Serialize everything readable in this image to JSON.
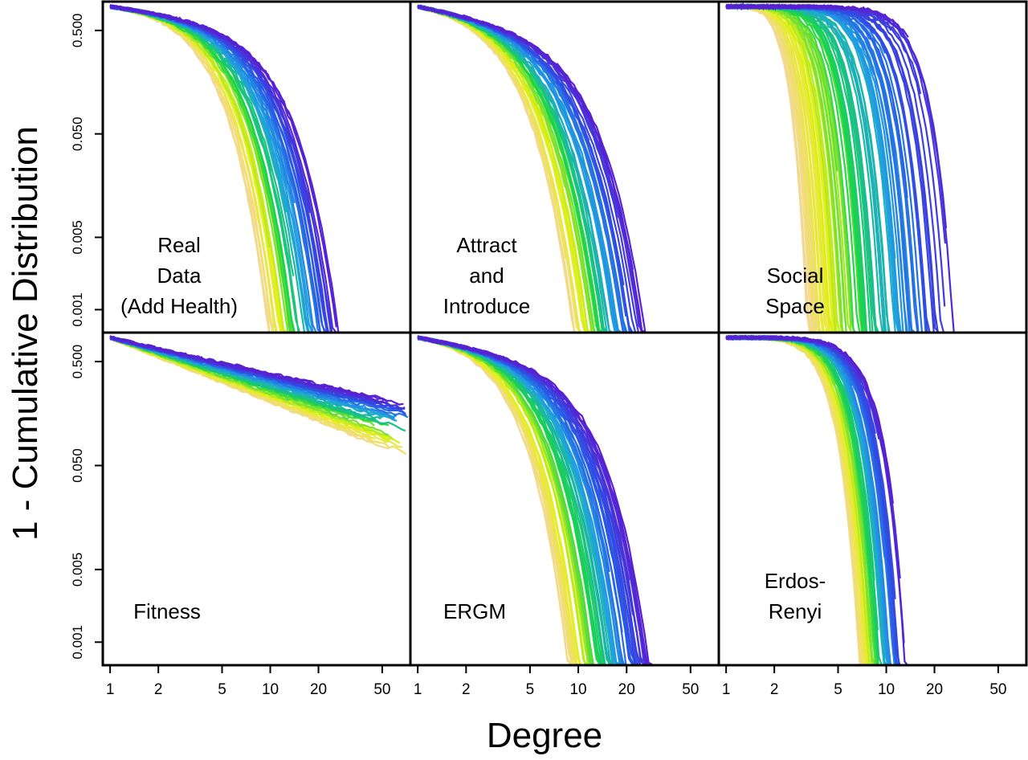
{
  "chart_data": {
    "type": "line",
    "ylabel": "1 - Cumulative Distribution",
    "xlabel": "Degree",
    "x_scale": "log",
    "y_scale": "log",
    "x_ticks": [
      1,
      2,
      5,
      10,
      20,
      50
    ],
    "x_tick_labels": [
      "1",
      "2",
      "5",
      "10",
      "20",
      "50"
    ],
    "y_ticks": [
      0.001,
      0.005,
      0.05,
      0.5
    ],
    "y_tick_labels": [
      "0.001",
      "0.005",
      "0.050",
      "0.500"
    ],
    "xlim": [
      0.9,
      75
    ],
    "ylim": [
      0.0006,
      0.95
    ],
    "color_scale": [
      "#5a1fd1",
      "#2a55e6",
      "#1fa3e0",
      "#19d44a",
      "#e3f014",
      "#f5d79a"
    ],
    "panels": [
      {
        "id": "real-data",
        "label_lines": [
          "Real",
          "Data",
          "(Add Health)"
        ],
        "model": "powercut",
        "n_series": 58,
        "kmin": 2.8,
        "kmax": 8.5,
        "beta": 1.7,
        "alpha": 0.22,
        "xmax_min": 5,
        "xmax_max": 38
      },
      {
        "id": "attract-introduce",
        "label_lines": [
          "Attract",
          "and",
          "Introduce"
        ],
        "model": "powercut",
        "n_series": 58,
        "kmin": 2.5,
        "kmax": 8.0,
        "beta": 1.6,
        "alpha": 0.3,
        "xmax_min": 5,
        "xmax_max": 40
      },
      {
        "id": "social-space",
        "label_lines": [
          "Social",
          "Space"
        ],
        "model": "gamma",
        "n_series": 110,
        "kmin": 1.2,
        "kmax": 15.5,
        "beta": 3.2,
        "alpha": 0,
        "xmax_min": 2,
        "xmax_max": 29
      },
      {
        "id": "fitness",
        "label_lines": [
          "Fitness"
        ],
        "model": "powerlaw",
        "n_series": 58,
        "kmin": 1.6,
        "kmax": 2.9,
        "beta": 1,
        "alpha": 0,
        "xmax_min": 20,
        "xmax_max": 75
      },
      {
        "id": "ergm",
        "label_lines": [
          "ERGM"
        ],
        "model": "powercut",
        "n_series": 70,
        "kmin": 2.5,
        "kmax": 9.0,
        "beta": 1.7,
        "alpha": 0.28,
        "xmax_min": 14,
        "xmax_max": 55
      },
      {
        "id": "erdos-renyi",
        "label_lines": [
          "Erdos-",
          "Renyi"
        ],
        "model": "gamma",
        "n_series": 64,
        "kmin": 3.0,
        "kmax": 6.5,
        "beta": 3.0,
        "alpha": 0,
        "xmax_min": 4,
        "xmax_max": 17
      }
    ]
  }
}
